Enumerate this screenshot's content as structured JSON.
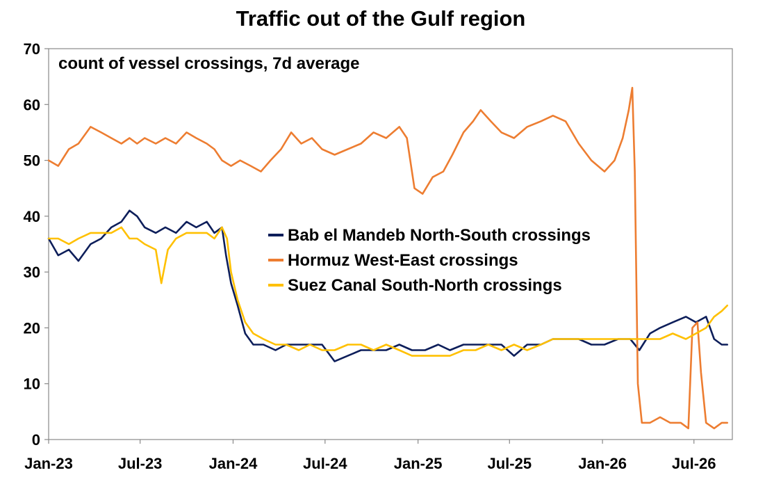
{
  "chart_data": {
    "type": "line",
    "title": "Traffic out of the Gulf region",
    "annotation": "count of vessel crossings, 7d average",
    "xlabel": "",
    "ylabel": "",
    "ylim": [
      0,
      70
    ],
    "yticks": [
      0,
      10,
      20,
      30,
      40,
      50,
      60,
      70
    ],
    "xlim": [
      "2023-01-01",
      "2026-09-15"
    ],
    "xticks": [
      {
        "date": "2023-01-01",
        "label": "Jan-23"
      },
      {
        "date": "2023-07-01",
        "label": "Jul-23"
      },
      {
        "date": "2024-01-01",
        "label": "Jan-24"
      },
      {
        "date": "2024-07-01",
        "label": "Jul-24"
      },
      {
        "date": "2025-01-01",
        "label": "Jan-25"
      },
      {
        "date": "2025-07-01",
        "label": "Jul-25"
      },
      {
        "date": "2026-01-01",
        "label": "Jan-26"
      },
      {
        "date": "2026-07-01",
        "label": "Jul-26"
      }
    ],
    "legend_position": "center",
    "grid": false,
    "series": [
      {
        "name": "Bab el Mandeb North-South crossings",
        "color": "#0d1e5a",
        "points": [
          [
            "2023-01-01",
            36
          ],
          [
            "2023-01-20",
            33
          ],
          [
            "2023-02-10",
            34
          ],
          [
            "2023-03-01",
            32
          ],
          [
            "2023-03-25",
            35
          ],
          [
            "2023-04-15",
            36
          ],
          [
            "2023-05-05",
            38
          ],
          [
            "2023-05-25",
            39
          ],
          [
            "2023-06-10",
            41
          ],
          [
            "2023-06-25",
            40
          ],
          [
            "2023-07-10",
            38
          ],
          [
            "2023-08-01",
            37
          ],
          [
            "2023-08-20",
            38
          ],
          [
            "2023-09-10",
            37
          ],
          [
            "2023-10-01",
            39
          ],
          [
            "2023-10-20",
            38
          ],
          [
            "2023-11-10",
            39
          ],
          [
            "2023-11-25",
            37
          ],
          [
            "2023-12-10",
            38
          ],
          [
            "2023-12-18",
            33
          ],
          [
            "2023-12-28",
            28
          ],
          [
            "2024-01-10",
            24
          ],
          [
            "2024-01-25",
            19
          ],
          [
            "2024-02-10",
            17
          ],
          [
            "2024-03-01",
            17
          ],
          [
            "2024-03-25",
            16
          ],
          [
            "2024-04-15",
            17
          ],
          [
            "2024-05-10",
            17
          ],
          [
            "2024-06-01",
            17
          ],
          [
            "2024-06-25",
            17
          ],
          [
            "2024-07-20",
            14
          ],
          [
            "2024-08-15",
            15
          ],
          [
            "2024-09-10",
            16
          ],
          [
            "2024-10-05",
            16
          ],
          [
            "2024-10-30",
            16
          ],
          [
            "2024-11-25",
            17
          ],
          [
            "2024-12-20",
            16
          ],
          [
            "2025-01-15",
            16
          ],
          [
            "2025-02-10",
            17
          ],
          [
            "2025-03-05",
            16
          ],
          [
            "2025-04-01",
            17
          ],
          [
            "2025-04-25",
            17
          ],
          [
            "2025-05-20",
            17
          ],
          [
            "2025-06-15",
            17
          ],
          [
            "2025-07-10",
            15
          ],
          [
            "2025-08-05",
            17
          ],
          [
            "2025-09-01",
            17
          ],
          [
            "2025-09-25",
            18
          ],
          [
            "2025-10-20",
            18
          ],
          [
            "2025-11-15",
            18
          ],
          [
            "2025-12-10",
            17
          ],
          [
            "2026-01-05",
            17
          ],
          [
            "2026-02-01",
            18
          ],
          [
            "2026-02-25",
            18
          ],
          [
            "2026-03-15",
            16
          ],
          [
            "2026-04-05",
            19
          ],
          [
            "2026-04-25",
            20
          ],
          [
            "2026-05-20",
            21
          ],
          [
            "2026-06-15",
            22
          ],
          [
            "2026-07-05",
            21
          ],
          [
            "2026-07-25",
            22
          ],
          [
            "2026-08-10",
            18
          ],
          [
            "2026-08-25",
            17
          ],
          [
            "2026-09-05",
            17
          ]
        ]
      },
      {
        "name": "Hormuz West-East crossings",
        "color": "#ed7d31",
        "points": [
          [
            "2023-01-01",
            50
          ],
          [
            "2023-01-20",
            49
          ],
          [
            "2023-02-10",
            52
          ],
          [
            "2023-03-01",
            53
          ],
          [
            "2023-03-25",
            56
          ],
          [
            "2023-04-15",
            55
          ],
          [
            "2023-05-05",
            54
          ],
          [
            "2023-05-25",
            53
          ],
          [
            "2023-06-10",
            54
          ],
          [
            "2023-06-25",
            53
          ],
          [
            "2023-07-10",
            54
          ],
          [
            "2023-08-01",
            53
          ],
          [
            "2023-08-20",
            54
          ],
          [
            "2023-09-10",
            53
          ],
          [
            "2023-10-01",
            55
          ],
          [
            "2023-10-20",
            54
          ],
          [
            "2023-11-10",
            53
          ],
          [
            "2023-11-25",
            52
          ],
          [
            "2023-12-10",
            50
          ],
          [
            "2023-12-28",
            49
          ],
          [
            "2024-01-15",
            50
          ],
          [
            "2024-02-05",
            49
          ],
          [
            "2024-02-25",
            48
          ],
          [
            "2024-03-15",
            50
          ],
          [
            "2024-04-05",
            52
          ],
          [
            "2024-04-25",
            55
          ],
          [
            "2024-05-15",
            53
          ],
          [
            "2024-06-05",
            54
          ],
          [
            "2024-06-25",
            52
          ],
          [
            "2024-07-20",
            51
          ],
          [
            "2024-08-15",
            52
          ],
          [
            "2024-09-10",
            53
          ],
          [
            "2024-10-05",
            55
          ],
          [
            "2024-10-30",
            54
          ],
          [
            "2024-11-25",
            56
          ],
          [
            "2024-12-10",
            54
          ],
          [
            "2024-12-25",
            45
          ],
          [
            "2025-01-10",
            44
          ],
          [
            "2025-01-30",
            47
          ],
          [
            "2025-02-20",
            48
          ],
          [
            "2025-03-10",
            51
          ],
          [
            "2025-04-01",
            55
          ],
          [
            "2025-04-20",
            57
          ],
          [
            "2025-05-05",
            59
          ],
          [
            "2025-05-25",
            57
          ],
          [
            "2025-06-15",
            55
          ],
          [
            "2025-07-10",
            54
          ],
          [
            "2025-08-05",
            56
          ],
          [
            "2025-09-01",
            57
          ],
          [
            "2025-09-25",
            58
          ],
          [
            "2025-10-20",
            57
          ],
          [
            "2025-11-15",
            53
          ],
          [
            "2025-12-10",
            50
          ],
          [
            "2026-01-05",
            48
          ],
          [
            "2026-01-25",
            50
          ],
          [
            "2026-02-10",
            54
          ],
          [
            "2026-02-22",
            59
          ],
          [
            "2026-03-01",
            63
          ],
          [
            "2026-03-06",
            48
          ],
          [
            "2026-03-12",
            10
          ],
          [
            "2026-03-20",
            3
          ],
          [
            "2026-04-05",
            3
          ],
          [
            "2026-04-25",
            4
          ],
          [
            "2026-05-15",
            3
          ],
          [
            "2026-06-05",
            3
          ],
          [
            "2026-06-20",
            2
          ],
          [
            "2026-06-28",
            20
          ],
          [
            "2026-07-08",
            21
          ],
          [
            "2026-07-15",
            12
          ],
          [
            "2026-07-25",
            3
          ],
          [
            "2026-08-10",
            2
          ],
          [
            "2026-08-25",
            3
          ],
          [
            "2026-09-05",
            3
          ]
        ]
      },
      {
        "name": "Suez Canal South-North crossings",
        "color": "#ffc000",
        "points": [
          [
            "2023-01-01",
            36
          ],
          [
            "2023-01-20",
            36
          ],
          [
            "2023-02-10",
            35
          ],
          [
            "2023-03-01",
            36
          ],
          [
            "2023-03-25",
            37
          ],
          [
            "2023-04-15",
            37
          ],
          [
            "2023-05-05",
            37
          ],
          [
            "2023-05-25",
            38
          ],
          [
            "2023-06-10",
            36
          ],
          [
            "2023-06-25",
            36
          ],
          [
            "2023-07-10",
            35
          ],
          [
            "2023-08-01",
            34
          ],
          [
            "2023-08-12",
            28
          ],
          [
            "2023-08-25",
            34
          ],
          [
            "2023-09-10",
            36
          ],
          [
            "2023-10-01",
            37
          ],
          [
            "2023-10-20",
            37
          ],
          [
            "2023-11-10",
            37
          ],
          [
            "2023-11-25",
            36
          ],
          [
            "2023-12-10",
            38
          ],
          [
            "2023-12-20",
            36
          ],
          [
            "2023-12-28",
            30
          ],
          [
            "2024-01-10",
            25
          ],
          [
            "2024-01-25",
            21
          ],
          [
            "2024-02-10",
            19
          ],
          [
            "2024-03-01",
            18
          ],
          [
            "2024-03-25",
            17
          ],
          [
            "2024-04-15",
            17
          ],
          [
            "2024-05-10",
            16
          ],
          [
            "2024-06-01",
            17
          ],
          [
            "2024-06-25",
            16
          ],
          [
            "2024-07-20",
            16
          ],
          [
            "2024-08-15",
            17
          ],
          [
            "2024-09-10",
            17
          ],
          [
            "2024-10-05",
            16
          ],
          [
            "2024-10-30",
            17
          ],
          [
            "2024-11-25",
            16
          ],
          [
            "2024-12-20",
            15
          ],
          [
            "2025-01-15",
            15
          ],
          [
            "2025-02-10",
            15
          ],
          [
            "2025-03-05",
            15
          ],
          [
            "2025-04-01",
            16
          ],
          [
            "2025-04-25",
            16
          ],
          [
            "2025-05-20",
            17
          ],
          [
            "2025-06-15",
            16
          ],
          [
            "2025-07-10",
            17
          ],
          [
            "2025-08-05",
            16
          ],
          [
            "2025-09-01",
            17
          ],
          [
            "2025-09-25",
            18
          ],
          [
            "2025-10-20",
            18
          ],
          [
            "2025-11-15",
            18
          ],
          [
            "2025-12-10",
            18
          ],
          [
            "2026-01-05",
            18
          ],
          [
            "2026-02-01",
            18
          ],
          [
            "2026-02-25",
            18
          ],
          [
            "2026-03-15",
            18
          ],
          [
            "2026-04-05",
            18
          ],
          [
            "2026-04-25",
            18
          ],
          [
            "2026-05-20",
            19
          ],
          [
            "2026-06-15",
            18
          ],
          [
            "2026-07-05",
            19
          ],
          [
            "2026-07-25",
            20
          ],
          [
            "2026-08-10",
            22
          ],
          [
            "2026-08-25",
            23
          ],
          [
            "2026-09-05",
            24
          ]
        ]
      }
    ]
  }
}
